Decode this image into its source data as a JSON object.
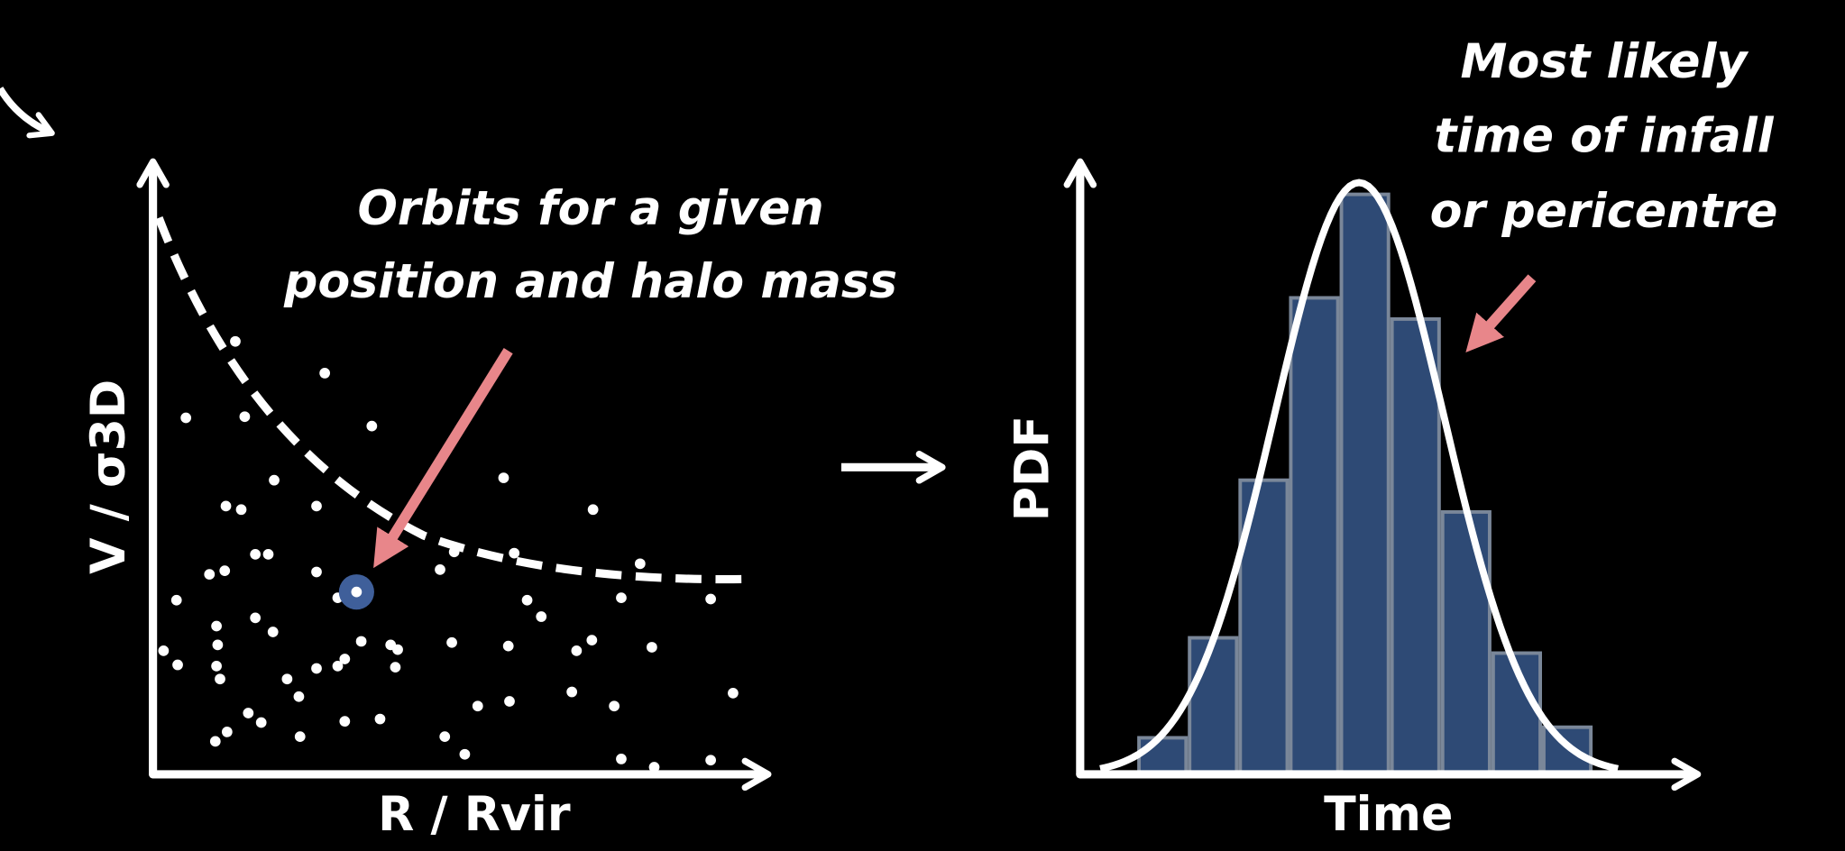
{
  "left_panel": {
    "annotation": [
      "Orbits for a given",
      "position and halo mass"
    ],
    "x_label": "R / Rvir",
    "y_label": "V / σ3D"
  },
  "right_panel": {
    "annotation": [
      "Most likely",
      "time of infall",
      "or pericentre"
    ],
    "x_label": "Time",
    "y_label": "PDF"
  }
}
